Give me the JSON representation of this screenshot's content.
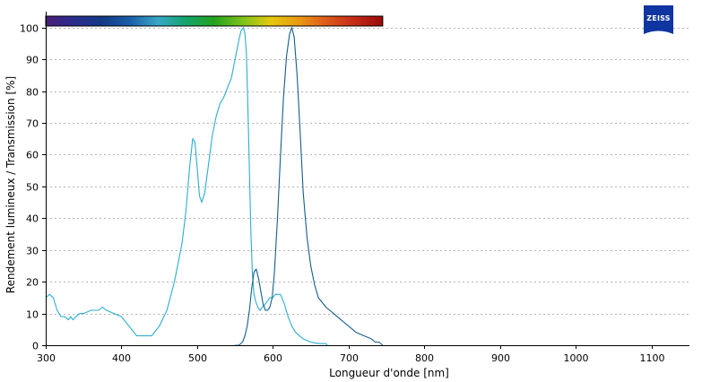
{
  "chart_data": {
    "type": "line",
    "xlabel": "Longueur d'onde [nm]",
    "ylabel": "Rendement lumineux / Transmission [%]",
    "xlim": [
      300,
      1150
    ],
    "ylim": [
      0,
      105
    ],
    "xticks": [
      300,
      400,
      500,
      600,
      700,
      800,
      900,
      1000,
      1100
    ],
    "yticks": [
      0,
      10,
      20,
      30,
      40,
      50,
      60,
      70,
      80,
      90,
      100
    ],
    "grid": true,
    "spectrum_bar_range": [
      300,
      745
    ],
    "series": [
      {
        "color": "#2aaed0",
        "x": [
          300,
          305,
          310,
          315,
          320,
          325,
          330,
          333,
          336,
          340,
          345,
          350,
          360,
          370,
          375,
          380,
          390,
          400,
          410,
          420,
          430,
          440,
          450,
          460,
          470,
          480,
          485,
          490,
          494,
          497,
          500,
          503,
          506,
          510,
          515,
          520,
          525,
          530,
          535,
          540,
          545,
          550,
          555,
          558,
          561,
          563,
          565,
          567,
          569,
          571,
          573,
          575,
          577,
          580,
          583,
          586,
          590,
          593,
          596,
          600,
          603,
          606,
          610,
          615,
          620,
          625,
          630,
          640,
          650,
          660,
          665,
          670,
          672
        ],
        "y": [
          15,
          16,
          15,
          11,
          9,
          9,
          8,
          9,
          8,
          9,
          10,
          10,
          11,
          11,
          12,
          11,
          10,
          9,
          6,
          3,
          3,
          3,
          6,
          11,
          20,
          32,
          42,
          56,
          65,
          64,
          56,
          47,
          45,
          48,
          57,
          66,
          72,
          76,
          78,
          81,
          84,
          90,
          96,
          99,
          100,
          98,
          92,
          75,
          55,
          35,
          22,
          16,
          14,
          12,
          11,
          12,
          13,
          14,
          15,
          15,
          16,
          16,
          16,
          13,
          9,
          6,
          4,
          2,
          1,
          0.5,
          0.5,
          0.5,
          0
        ]
      },
      {
        "color": "#145e8c",
        "x": [
          550,
          555,
          560,
          563,
          566,
          569,
          572,
          575,
          578,
          581,
          584,
          587,
          590,
          593,
          596,
          599,
          602,
          606,
          610,
          614,
          618,
          622,
          625,
          628,
          632,
          636,
          640,
          645,
          650,
          655,
          660,
          670,
          680,
          690,
          700,
          710,
          720,
          730,
          735,
          740,
          745
        ],
        "y": [
          0,
          0,
          1,
          3,
          6,
          11,
          18,
          23,
          24,
          21,
          17,
          13,
          11,
          11,
          12,
          15,
          23,
          40,
          60,
          78,
          91,
          98,
          100,
          97,
          85,
          67,
          48,
          34,
          25,
          19,
          15,
          12,
          10,
          8,
          6,
          4,
          3,
          2,
          1,
          1,
          0
        ]
      }
    ]
  },
  "logo": {
    "text": "ZEISS",
    "color": "#0f35a0"
  },
  "spectrum_bar": {
    "stops": [
      "#4a1e7a",
      "#2b2d8c",
      "#123a86",
      "#1b5fa8",
      "#38a7c6",
      "#13a46a",
      "#24a21e",
      "#7cc21a",
      "#e6c80c",
      "#e89a12",
      "#dd5a1a",
      "#c42a16",
      "#9a0a0a"
    ]
  }
}
